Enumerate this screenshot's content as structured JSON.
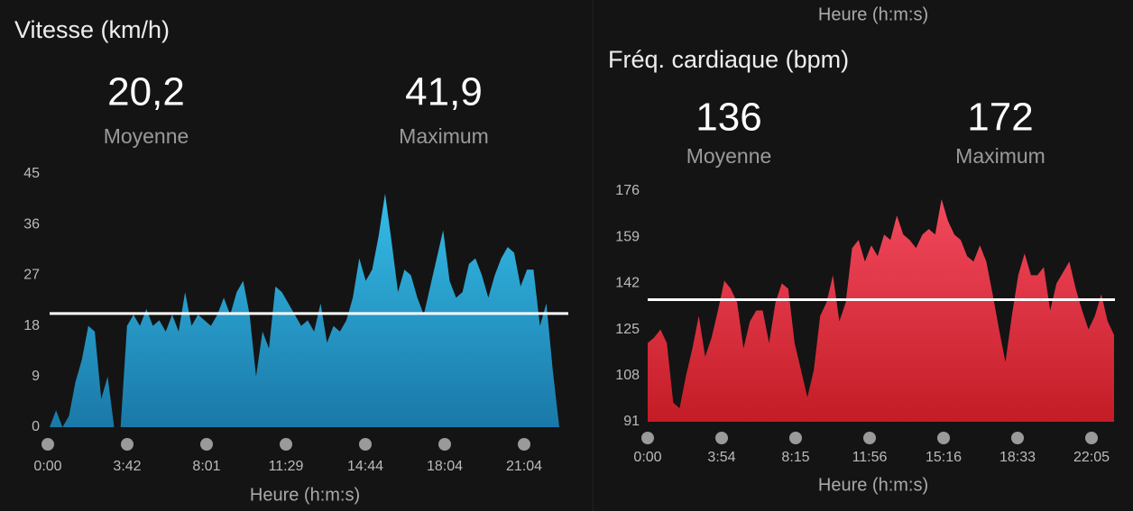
{
  "fragment": {
    "x_label": "Heure (h:m:s)"
  },
  "chart_data": [
    {
      "type": "area",
      "title": "Vitesse (km/h)",
      "stats": [
        {
          "value": 20.2,
          "label": "20,2",
          "name": "Moyenne"
        },
        {
          "value": 41.9,
          "label": "41,9",
          "name": "Maximum"
        }
      ],
      "gradient": [
        "#35bde8",
        "#1a78a8"
      ],
      "values": [
        0,
        3,
        0,
        2,
        8,
        12,
        18,
        17,
        5,
        9,
        0,
        0,
        18,
        20,
        18,
        21,
        18,
        19,
        17,
        20,
        17,
        24,
        18,
        20,
        19,
        18,
        20,
        23,
        20,
        24,
        26,
        20,
        9,
        17,
        14,
        25,
        24,
        22,
        20,
        18,
        19,
        17,
        22,
        15,
        18,
        17,
        19,
        23,
        30,
        26,
        28,
        34,
        41.5,
        33,
        24,
        28,
        27,
        23,
        20,
        25,
        30,
        35,
        26,
        23,
        24,
        29,
        30,
        27,
        23,
        27,
        30,
        32,
        31,
        25,
        28,
        28,
        18,
        22,
        10,
        0
      ],
      "ylim": [
        0,
        45
      ],
      "yticks": [
        0,
        9,
        18,
        27,
        36,
        45
      ],
      "xtick_labels": [
        "0:00",
        "3:42",
        "8:01",
        "11:29",
        "14:44",
        "18:04",
        "21:04"
      ],
      "x_label": "Heure (h:m:s)"
    },
    {
      "type": "area",
      "title": "Fréq. cardiaque (bpm)",
      "stats": [
        {
          "value": 136,
          "name": "Moyenne"
        },
        {
          "value": 172,
          "name": "Maximum"
        }
      ],
      "gradient": [
        "#f24a5e",
        "#c41c26"
      ],
      "values": [
        120,
        122,
        125,
        120,
        98,
        96,
        108,
        118,
        130,
        115,
        122,
        132,
        143,
        140,
        135,
        118,
        128,
        132,
        132,
        120,
        135,
        142,
        140,
        120,
        110,
        100,
        110,
        130,
        135,
        145,
        128,
        135,
        155,
        158,
        150,
        156,
        152,
        160,
        158,
        167,
        160,
        158,
        155,
        160,
        162,
        160,
        173,
        165,
        160,
        158,
        152,
        150,
        156,
        150,
        138,
        125,
        113,
        130,
        145,
        153,
        145,
        145,
        148,
        132,
        142,
        146,
        150,
        140,
        132,
        125,
        130,
        138,
        128,
        123
      ],
      "ylim": [
        91,
        176
      ],
      "yticks": [
        91,
        108,
        125,
        142,
        159,
        176
      ],
      "xtick_labels": [
        "0:00",
        "3:54",
        "8:15",
        "11:56",
        "15:16",
        "18:33",
        "22:05"
      ],
      "x_label": "Heure (h:m:s)"
    }
  ]
}
